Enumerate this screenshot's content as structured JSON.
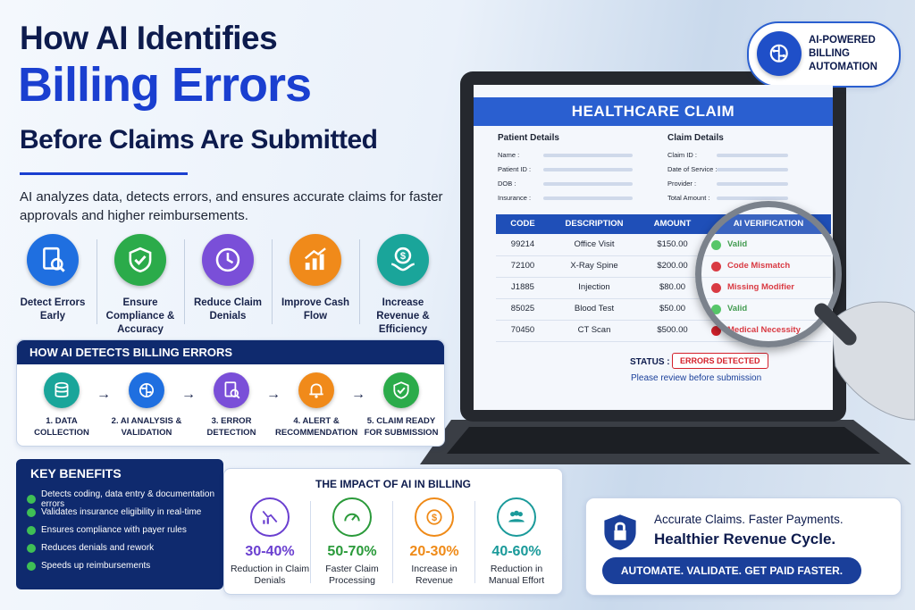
{
  "header": {
    "line1": "How AI Identifies",
    "line2": "Billing Errors",
    "line3": "Before Claims Are Submitted",
    "intro": "AI analyzes data, detects errors, and ensures accurate claims for faster approvals and higher reimbursements."
  },
  "badge": {
    "lines": [
      "AI-POWERED",
      "BILLING",
      "AUTOMATION"
    ]
  },
  "features": [
    "Detect Errors Early",
    "Ensure Compliance & Accuracy",
    "Reduce Claim Denials",
    "Improve Cash Flow",
    "Increase Revenue & Efficiency"
  ],
  "process": {
    "title": "HOW AI DETECTS BILLING ERRORS",
    "steps": [
      "1. DATA COLLECTION",
      "2. AI ANALYSIS & VALIDATION",
      "3. ERROR DETECTION",
      "4. ALERT & RECOMMENDATION",
      "5. CLAIM READY FOR SUBMISSION"
    ]
  },
  "benefits": {
    "title": "KEY BENEFITS",
    "items": [
      "Detects coding, data entry & documentation errors",
      "Validates insurance eligibility in real-time",
      "Ensures compliance with payer rules",
      "Reduces denials and rework",
      "Speeds up reimbursements"
    ]
  },
  "impact": {
    "title": "THE IMPACT OF AI IN BILLING",
    "stats": [
      {
        "value": "30-40%",
        "label": "Reduction in Claim Denials"
      },
      {
        "value": "50-70%",
        "label": "Faster Claim Processing"
      },
      {
        "value": "20-30%",
        "label": "Increase in Revenue"
      },
      {
        "value": "40-60%",
        "label": "Reduction in Manual Effort"
      }
    ]
  },
  "claim": {
    "title": "HEALTHCARE CLAIM",
    "patient": {
      "title": "Patient Details",
      "fields": [
        "Name :",
        "Patient ID :",
        "DOB :",
        "Insurance :"
      ]
    },
    "details": {
      "title": "Claim Details",
      "fields": [
        "Claim ID :",
        "Date of Service :",
        "Provider :",
        "Total Amount :"
      ]
    },
    "columns": [
      "CODE",
      "DESCRIPTION",
      "AMOUNT",
      "AI VERIFICATION"
    ],
    "rows": [
      [
        "99214",
        "Office Visit",
        "$150.00",
        "Valid"
      ],
      [
        "72100",
        "X-Ray Spine",
        "$200.00",
        "Code Mismatch"
      ],
      [
        "J1885",
        "Injection",
        "$80.00",
        "Missing Modifier"
      ],
      [
        "85025",
        "Blood Test",
        "$50.00",
        "Valid"
      ],
      [
        "70450",
        "CT Scan",
        "$500.00",
        "Medical Necessity"
      ]
    ],
    "status_label": "STATUS :",
    "status": "ERRORS DETECTED",
    "note": "Please review before submission"
  },
  "cta": {
    "line1": "Accurate Claims. Faster Payments.",
    "line2": "Healthier Revenue Cycle.",
    "button": "AUTOMATE. VALIDATE. GET PAID FASTER."
  }
}
